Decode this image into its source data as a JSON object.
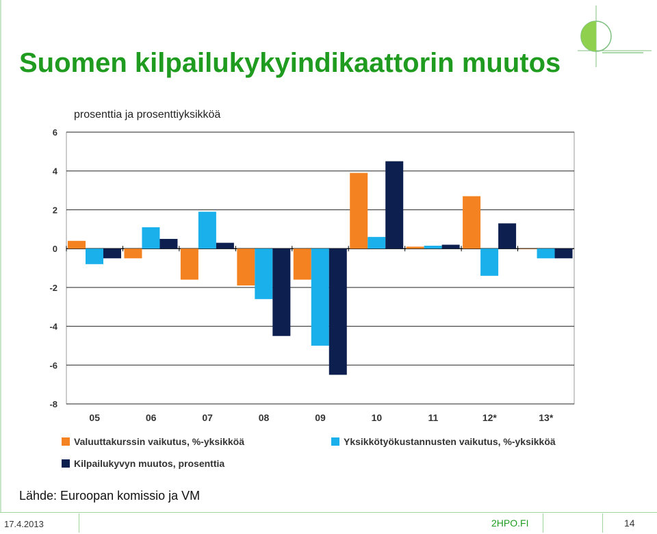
{
  "slide": {
    "title": "Suomen kilpailukykyindikaattorin muutos",
    "source": "Lähde: Euroopan komissio ja VM"
  },
  "footer": {
    "date": "17.4.2013",
    "site": "2HPO.FI",
    "page": "14"
  },
  "colors": {
    "title": "#1f9b1f",
    "orange": "#f58220",
    "lightblue": "#1ab0ec",
    "navy": "#0d1f4f"
  },
  "chart_data": {
    "type": "bar",
    "subtitle": "prosenttia ja prosenttiyksikköä",
    "categories": [
      "05",
      "06",
      "07",
      "08",
      "09",
      "10",
      "11",
      "12*",
      "13*"
    ],
    "ylim": [
      -8,
      6
    ],
    "yticks": [
      "6",
      "4",
      "2",
      "0",
      "-2",
      "-4",
      "-6",
      "-8"
    ],
    "grid": true,
    "legend_position": "bottom",
    "series": [
      {
        "name": "Valuuttakurssin vaikutus, %-yksikköä",
        "color": "#f58220",
        "values": [
          0.4,
          -0.5,
          -1.6,
          -1.9,
          -1.6,
          3.9,
          0.1,
          2.7,
          0.0
        ]
      },
      {
        "name": "Yksikkötyökustannusten vaikutus, %-yksikköä",
        "color": "#1ab0ec",
        "values": [
          -0.8,
          1.1,
          1.9,
          -2.6,
          -5.0,
          0.6,
          0.15,
          -1.4,
          -0.5
        ]
      },
      {
        "name": "Kilpailukyvyn muutos, prosenttia",
        "color": "#0d1f4f",
        "values": [
          -0.5,
          0.5,
          0.3,
          -4.5,
          -6.5,
          4.5,
          0.2,
          1.3,
          -0.5
        ]
      }
    ]
  }
}
